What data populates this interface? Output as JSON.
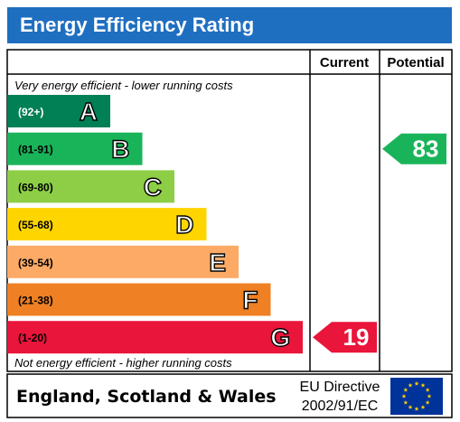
{
  "title": "Energy Efficiency Rating",
  "columns": {
    "current": "Current",
    "potential": "Potential"
  },
  "top_note": "Very energy efficient - lower running costs",
  "bottom_note": "Not energy efficient - higher running costs",
  "footer": {
    "region": "England, Scotland & Wales",
    "directive_line1": "EU Directive",
    "directive_line2": "2002/91/EC"
  },
  "chart_data": {
    "type": "bar",
    "bands": [
      {
        "range": "(92+)",
        "letter": "A",
        "color": "#008054"
      },
      {
        "range": "(81-91)",
        "letter": "B",
        "color": "#19b459"
      },
      {
        "range": "(69-80)",
        "letter": "C",
        "color": "#8dce46"
      },
      {
        "range": "(55-68)",
        "letter": "D",
        "color": "#ffd500"
      },
      {
        "range": "(39-54)",
        "letter": "E",
        "color": "#fcaa65"
      },
      {
        "range": "(21-38)",
        "letter": "F",
        "color": "#ef8023"
      },
      {
        "range": "(1-20)",
        "letter": "G",
        "color": "#e9153b"
      }
    ],
    "current": {
      "value": 19,
      "band": "G",
      "color": "#e9153b"
    },
    "potential": {
      "value": 83,
      "band": "B",
      "color": "#19b459"
    }
  }
}
